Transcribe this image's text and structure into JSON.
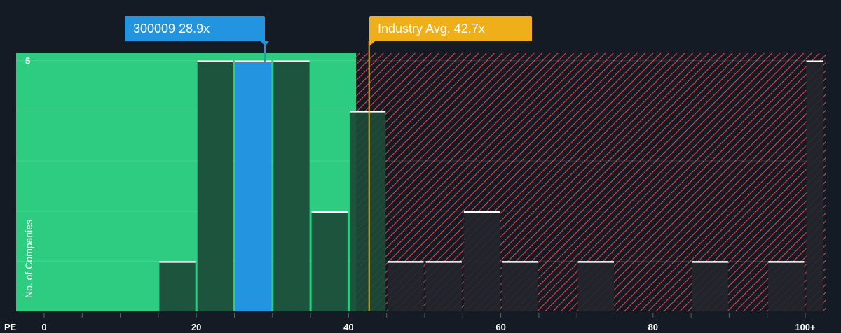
{
  "company_callout": {
    "ticker": "300009",
    "value": "28.9x"
  },
  "industry_callout": {
    "label": "Industry Avg. 42.7x"
  },
  "colors": {
    "background": "#151b24",
    "fair_zone": "#2ecc80",
    "over_zone_stripe": "#e0464b",
    "company_bar": "#2394df",
    "industry_line": "#eeaf1a",
    "bar_dark": "#1c4a38",
    "bar_over": "#23252d",
    "bar_top": "#ffffff"
  },
  "chart_data": {
    "type": "bar",
    "title": "",
    "xlabel": "PE",
    "ylabel": "No. of Companies",
    "x_ticks": [
      "0",
      "20",
      "40",
      "60",
      "80",
      "100+"
    ],
    "y_ticks": [
      "5"
    ],
    "xlim": [
      0,
      102
    ],
    "ylim": [
      0,
      5.15
    ],
    "company_pe": 28.9,
    "industry_avg_pe": 42.7,
    "fair_value_max_pe": 41,
    "bins": [
      {
        "from": 15,
        "to": 20,
        "count": 1,
        "highlight": false
      },
      {
        "from": 20,
        "to": 25,
        "count": 5,
        "highlight": false
      },
      {
        "from": 25,
        "to": 30,
        "count": 5,
        "highlight": true
      },
      {
        "from": 30,
        "to": 35,
        "count": 5,
        "highlight": false
      },
      {
        "from": 35,
        "to": 40,
        "count": 2,
        "highlight": false
      },
      {
        "from": 40,
        "to": 45,
        "count": 4,
        "highlight": false
      },
      {
        "from": 45,
        "to": 50,
        "count": 1,
        "highlight": false
      },
      {
        "from": 50,
        "to": 55,
        "count": 1,
        "highlight": false
      },
      {
        "from": 55,
        "to": 60,
        "count": 2,
        "highlight": false
      },
      {
        "from": 60,
        "to": 65,
        "count": 1,
        "highlight": false
      },
      {
        "from": 70,
        "to": 75,
        "count": 1,
        "highlight": false
      },
      {
        "from": 85,
        "to": 90,
        "count": 1,
        "highlight": false
      },
      {
        "from": 95,
        "to": 100,
        "count": 1,
        "highlight": false
      },
      {
        "from": 100,
        "to": 102.5,
        "count": 5,
        "highlight": false
      }
    ]
  }
}
